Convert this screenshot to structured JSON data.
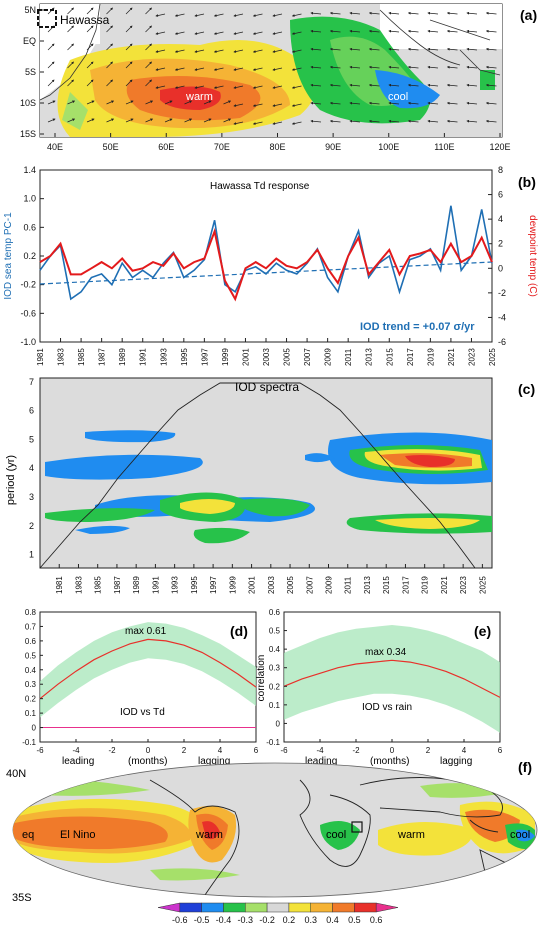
{
  "chart_data": [
    {
      "panel": "(a)",
      "type": "heatmap",
      "xticks": [
        "40E",
        "50E",
        "60E",
        "70E",
        "80E",
        "90E",
        "100E",
        "110E",
        "120E"
      ],
      "yticks": [
        "5N",
        "EQ",
        "5S",
        "10S",
        "15S"
      ],
      "annotations": [
        "Hawassa",
        "warm",
        "cool"
      ]
    },
    {
      "panel": "(b)",
      "type": "line",
      "title": "Hawassa Td response",
      "ylabel": "IOD sea temp PC-1",
      "ylabel_right": "dewpoint temp (C)",
      "yticks": [
        "1.4",
        "1.0",
        "0.6",
        "0.2",
        "-0.2",
        "-0.6",
        "-1.0"
      ],
      "yticks_right": [
        "8",
        "6",
        "4",
        "2",
        "0",
        "-2",
        "-4",
        "-6"
      ],
      "ylim": [
        -1.0,
        1.4
      ],
      "ylim_right": [
        -6,
        8
      ],
      "xlim": [
        1981,
        2025
      ],
      "xticks": [
        "1981",
        "1983",
        "1985",
        "1987",
        "1989",
        "1991",
        "1993",
        "1995",
        "1997",
        "1999",
        "2001",
        "2003",
        "2005",
        "2007",
        "2009",
        "2011",
        "2013",
        "2015",
        "2017",
        "2019",
        "2021",
        "2023",
        "2025"
      ],
      "trend_label": "IOD trend = +0.07 σ/yr",
      "series": [
        {
          "color": "#1f6fb4",
          "x": [
            1981,
            1982,
            1983,
            1984,
            1985,
            1986,
            1987,
            1988,
            1989,
            1990,
            1991,
            1992,
            1993,
            1994,
            1995,
            1996,
            1997,
            1998,
            1999,
            2000,
            2001,
            2002,
            2003,
            2004,
            2005,
            2006,
            2007,
            2008,
            2009,
            2010,
            2011,
            2012,
            2013,
            2014,
            2015,
            2016,
            2017,
            2018,
            2019,
            2020,
            2021,
            2022,
            2023,
            2024,
            2025
          ],
          "values": [
            0.0,
            0.2,
            0.35,
            -0.4,
            -0.3,
            -0.1,
            -0.05,
            -0.2,
            0.1,
            -0.1,
            0.0,
            -0.1,
            0.1,
            0.25,
            -0.1,
            0.0,
            0.15,
            0.7,
            -0.2,
            -0.3,
            0.0,
            0.05,
            -0.05,
            0.1,
            0.0,
            -0.05,
            0.1,
            0.3,
            -0.1,
            -0.3,
            0.2,
            0.55,
            -0.1,
            0.1,
            0.2,
            -0.3,
            0.15,
            0.2,
            0.3,
            0.0,
            0.9,
            0.0,
            0.2,
            0.85,
            0.1
          ]
        },
        {
          "color": "#e31a1c",
          "x": [
            1981,
            1982,
            1983,
            1984,
            1985,
            1986,
            1987,
            1988,
            1989,
            1990,
            1991,
            1992,
            1993,
            1994,
            1995,
            1996,
            1997,
            1998,
            1999,
            2000,
            2001,
            2002,
            2003,
            2004,
            2005,
            2006,
            2007,
            2008,
            2009,
            2010,
            2011,
            2012,
            2013,
            2014,
            2015,
            2016,
            2017,
            2018,
            2019,
            2020,
            2021,
            2022,
            2023,
            2024,
            2025
          ],
          "values": [
            0.5,
            1.0,
            2.0,
            -0.5,
            -0.5,
            0.0,
            0.5,
            0.0,
            0.8,
            -0.2,
            0.0,
            0.5,
            0.2,
            1.2,
            0.0,
            0.5,
            0.8,
            3.0,
            -1.0,
            -2.5,
            0.0,
            0.5,
            0.0,
            0.8,
            0.2,
            0.0,
            0.5,
            1.5,
            0.0,
            -1.2,
            1.0,
            2.5,
            -0.5,
            0.5,
            1.5,
            -0.5,
            1.0,
            1.2,
            1.5,
            0.5,
            2.0,
            0.5,
            1.0,
            2.5,
            0.5
          ]
        }
      ]
    },
    {
      "panel": "(c)",
      "type": "heatmap",
      "title": "IOD spectra",
      "ylabel": "period (yr)",
      "yticks": [
        "7",
        "6",
        "5",
        "4",
        "3",
        "2",
        "1"
      ],
      "xticks": [
        "1981",
        "1983",
        "1985",
        "1987",
        "1989",
        "1991",
        "1993",
        "1995",
        "1997",
        "1999",
        "2001",
        "2003",
        "2005",
        "2007",
        "2009",
        "2011",
        "2013",
        "2015",
        "2017",
        "2019",
        "2021",
        "2023",
        "2025"
      ]
    },
    {
      "panel": "(d)",
      "type": "line",
      "label": "IOD vs Td",
      "max_label": "max 0.61",
      "xticks": [
        "-6",
        "-4",
        "-2",
        "0",
        "2",
        "4",
        "6"
      ],
      "yticks": [
        "0.8",
        "0.7",
        "0.6",
        "0.5",
        "0.4",
        "0.3",
        "0.2",
        "0.1",
        "0",
        "-0.1"
      ],
      "ylim": [
        -0.1,
        0.8
      ],
      "xlim": [
        -6,
        6
      ],
      "xlabel_parts": [
        "leading",
        "(months)",
        "lagging"
      ],
      "x": [
        -6,
        -5,
        -4,
        -3,
        -2,
        -1,
        0,
        1,
        2,
        3,
        4,
        5,
        6
      ],
      "values": [
        0.2,
        0.3,
        0.39,
        0.47,
        0.53,
        0.58,
        0.61,
        0.6,
        0.57,
        0.52,
        0.45,
        0.37,
        0.28
      ],
      "upper": [
        0.32,
        0.43,
        0.52,
        0.6,
        0.66,
        0.7,
        0.73,
        0.72,
        0.69,
        0.64,
        0.58,
        0.5,
        0.42
      ],
      "lower": [
        0.07,
        0.17,
        0.26,
        0.34,
        0.4,
        0.45,
        0.48,
        0.47,
        0.44,
        0.39,
        0.32,
        0.24,
        0.15
      ]
    },
    {
      "panel": "(e)",
      "type": "line",
      "label": "IOD vs rain",
      "max_label": "max 0.34",
      "ylabel": "correlation",
      "xticks": [
        "-6",
        "-4",
        "-2",
        "0",
        "2",
        "4",
        "6"
      ],
      "yticks": [
        "0.6",
        "0.5",
        "0.4",
        "0.3",
        "0.2",
        "0.1",
        "0",
        "-0.1"
      ],
      "ylim": [
        -0.1,
        0.6
      ],
      "xlim": [
        -6,
        6
      ],
      "xlabel_parts": [
        "leading",
        "(months)",
        "lagging"
      ],
      "x": [
        -6,
        -5,
        -4,
        -3,
        -2,
        -1,
        0,
        1,
        2,
        3,
        4,
        5,
        6
      ],
      "values": [
        0.2,
        0.24,
        0.27,
        0.3,
        0.32,
        0.33,
        0.34,
        0.33,
        0.31,
        0.28,
        0.24,
        0.19,
        0.14
      ],
      "upper": [
        0.38,
        0.42,
        0.46,
        0.49,
        0.51,
        0.52,
        0.53,
        0.52,
        0.5,
        0.47,
        0.43,
        0.39,
        0.33
      ],
      "lower": [
        0.02,
        0.06,
        0.09,
        0.12,
        0.14,
        0.16,
        0.16,
        0.15,
        0.13,
        0.1,
        0.06,
        0.01,
        -0.05
      ]
    },
    {
      "panel": "(f)",
      "type": "heatmap",
      "ylabels": [
        "40N",
        "35S"
      ],
      "annotations": [
        "eq",
        "El Nino",
        "warm",
        "cool",
        "warm",
        "cool"
      ],
      "colorbar": [
        "-0.6",
        "-0.5",
        "-0.4",
        "-0.3",
        "-0.2",
        "0.2",
        "0.3",
        "0.4",
        "0.5",
        "0.6"
      ],
      "colorbar_colors": [
        "#cc33cc",
        "#1f3fd8",
        "#1f8cf0",
        "#27c24a",
        "#a6e06a",
        "#d8d8d8",
        "#f3e23a",
        "#f5b335",
        "#f07a2a",
        "#e8302a",
        "#e8308c"
      ]
    }
  ],
  "panel_labels": [
    "(a)",
    "(b)",
    "(c)",
    "(d)",
    "(e)",
    "(f)"
  ]
}
